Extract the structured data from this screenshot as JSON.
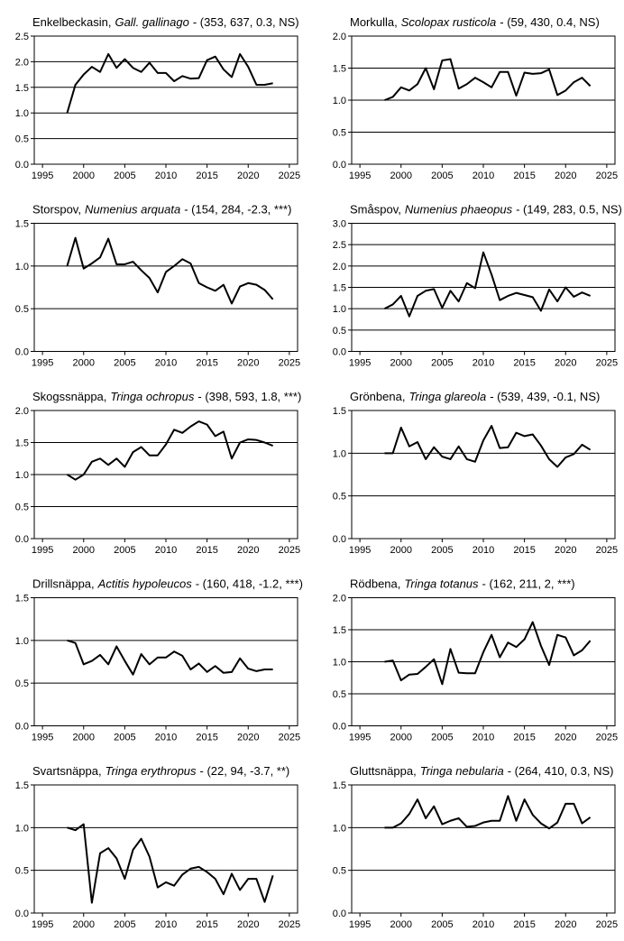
{
  "chart_data": [
    {
      "type": "line",
      "title": "Enkelbeckasin,",
      "species": "Gall. gallinago",
      "stats": "- (353, 637, 0.3, NS)",
      "x": [
        1998,
        1999,
        2000,
        2001,
        2002,
        2003,
        2004,
        2005,
        2006,
        2007,
        2008,
        2009,
        2010,
        2011,
        2012,
        2013,
        2014,
        2015,
        2016,
        2017,
        2018,
        2019,
        2020,
        2021,
        2022,
        2023
      ],
      "values": [
        1.0,
        1.55,
        1.75,
        1.9,
        1.8,
        2.15,
        1.88,
        2.05,
        1.88,
        1.8,
        1.98,
        1.78,
        1.78,
        1.62,
        1.72,
        1.67,
        1.68,
        2.03,
        2.1,
        1.85,
        1.7,
        2.15,
        1.9,
        1.55,
        1.55,
        1.58
      ],
      "color": "#000000",
      "xlim": [
        1994,
        2026
      ],
      "xticks": [
        1995,
        2000,
        2005,
        2010,
        2015,
        2020,
        2025
      ],
      "ylim": [
        0,
        2.5
      ],
      "yticks": [
        {
          "value": 0,
          "label": "0.0"
        },
        0.5,
        {
          "value": 1,
          "label": "1.0"
        },
        1.5,
        {
          "value": 2,
          "label": "2.0"
        },
        2.5
      ],
      "grid": true
    },
    {
      "type": "line",
      "title": "Morkulla,",
      "species": "Scolopax rusticola",
      "stats": "- (59, 430, 0.4, NS)",
      "x": [
        1998,
        1999,
        2000,
        2001,
        2002,
        2003,
        2004,
        2005,
        2006,
        2007,
        2008,
        2009,
        2010,
        2011,
        2012,
        2013,
        2014,
        2015,
        2016,
        2017,
        2018,
        2019,
        2020,
        2021,
        2022,
        2023
      ],
      "values": [
        1.0,
        1.05,
        1.2,
        1.15,
        1.25,
        1.5,
        1.17,
        1.62,
        1.64,
        1.18,
        1.25,
        1.35,
        1.28,
        1.2,
        1.44,
        1.44,
        1.07,
        1.43,
        1.41,
        1.42,
        1.48,
        1.08,
        1.15,
        1.28,
        1.35,
        1.22
      ],
      "color": "#000000",
      "xlim": [
        1994,
        2026
      ],
      "xticks": [
        1995,
        2000,
        2005,
        2010,
        2015,
        2020,
        2025
      ],
      "ylim": [
        0,
        2
      ],
      "yticks": [
        {
          "value": 0,
          "label": "0.0"
        },
        0.5,
        {
          "value": 1,
          "label": "1.0"
        },
        1.5,
        {
          "value": 2,
          "label": "2.0"
        }
      ],
      "grid": true
    },
    {
      "type": "line",
      "title": "Storspov,",
      "species": "Numenius arquata",
      "stats": "- (154, 284, -2.3, ***)",
      "x": [
        1998,
        1999,
        2000,
        2001,
        2002,
        2003,
        2004,
        2005,
        2006,
        2007,
        2008,
        2009,
        2010,
        2011,
        2012,
        2013,
        2014,
        2015,
        2016,
        2017,
        2018,
        2019,
        2020,
        2021,
        2022,
        2023
      ],
      "values": [
        1.0,
        1.33,
        0.97,
        1.03,
        1.1,
        1.32,
        1.02,
        1.02,
        1.05,
        0.95,
        0.86,
        0.69,
        0.93,
        1.0,
        1.08,
        1.03,
        0.8,
        0.75,
        0.71,
        0.78,
        0.56,
        0.76,
        0.8,
        0.78,
        0.72,
        0.61
      ],
      "color": "#000000",
      "xlim": [
        1994,
        2026
      ],
      "xticks": [
        1995,
        2000,
        2005,
        2010,
        2015,
        2020,
        2025
      ],
      "ylim": [
        0,
        1.5
      ],
      "yticks": [
        {
          "value": 0,
          "label": "0.0"
        },
        0.5,
        {
          "value": 1,
          "label": "1.0"
        },
        1.5
      ],
      "grid": true
    },
    {
      "type": "line",
      "title": "Småspov,",
      "species": "Numenius phaeopus",
      "stats": "- (149, 283, 0.5, NS)",
      "x": [
        1998,
        1999,
        2000,
        2001,
        2002,
        2003,
        2004,
        2005,
        2006,
        2007,
        2008,
        2009,
        2010,
        2011,
        2012,
        2013,
        2014,
        2015,
        2016,
        2017,
        2018,
        2019,
        2020,
        2021,
        2022,
        2023
      ],
      "values": [
        1.0,
        1.1,
        1.3,
        0.82,
        1.3,
        1.42,
        1.46,
        1.02,
        1.42,
        1.17,
        1.6,
        1.48,
        2.32,
        1.8,
        1.2,
        1.3,
        1.37,
        1.32,
        1.27,
        0.95,
        1.45,
        1.17,
        1.5,
        1.28,
        1.38,
        1.3
      ],
      "color": "#000000",
      "xlim": [
        1994,
        2026
      ],
      "xticks": [
        1995,
        2000,
        2005,
        2010,
        2015,
        2020,
        2025
      ],
      "ylim": [
        0,
        3
      ],
      "yticks": [
        {
          "value": 0,
          "label": "0.0"
        },
        0.5,
        {
          "value": 1,
          "label": "1.0"
        },
        1.5,
        {
          "value": 2,
          "label": "2.0"
        },
        2.5,
        {
          "value": 3,
          "label": "3.0"
        }
      ],
      "grid": true
    },
    {
      "type": "line",
      "title": "Skogssnäppa,",
      "species": "Tringa ochropus",
      "stats": "- (398, 593, 1.8, ***)",
      "x": [
        1998,
        1999,
        2000,
        2001,
        2002,
        2003,
        2004,
        2005,
        2006,
        2007,
        2008,
        2009,
        2010,
        2011,
        2012,
        2013,
        2014,
        2015,
        2016,
        2017,
        2018,
        2019,
        2020,
        2021,
        2022,
        2023
      ],
      "values": [
        1.0,
        0.92,
        1.0,
        1.2,
        1.25,
        1.15,
        1.25,
        1.12,
        1.35,
        1.43,
        1.3,
        1.3,
        1.47,
        1.7,
        1.65,
        1.75,
        1.83,
        1.78,
        1.6,
        1.67,
        1.25,
        1.5,
        1.55,
        1.54,
        1.5,
        1.45
      ],
      "color": "#000000",
      "xlim": [
        1994,
        2026
      ],
      "xticks": [
        1995,
        2000,
        2005,
        2010,
        2015,
        2020,
        2025
      ],
      "ylim": [
        0,
        2
      ],
      "yticks": [
        {
          "value": 0,
          "label": "0.0"
        },
        0.5,
        {
          "value": 1,
          "label": "1.0"
        },
        1.5,
        {
          "value": 2,
          "label": "2.0"
        }
      ],
      "grid": true
    },
    {
      "type": "line",
      "title": "Grönbena,",
      "species": "Tringa glareola",
      "stats": "- (539, 439, -0.1, NS)",
      "x": [
        1998,
        1999,
        2000,
        2001,
        2002,
        2003,
        2004,
        2005,
        2006,
        2007,
        2008,
        2009,
        2010,
        2011,
        2012,
        2013,
        2014,
        2015,
        2016,
        2017,
        2018,
        2019,
        2020,
        2021,
        2022,
        2023
      ],
      "values": [
        1.0,
        1.0,
        1.3,
        1.08,
        1.13,
        0.93,
        1.07,
        0.96,
        0.93,
        1.08,
        0.93,
        0.9,
        1.15,
        1.32,
        1.06,
        1.07,
        1.24,
        1.2,
        1.22,
        1.09,
        0.93,
        0.84,
        0.95,
        0.99,
        1.1,
        1.04
      ],
      "color": "#000000",
      "xlim": [
        1994,
        2026
      ],
      "xticks": [
        1995,
        2000,
        2005,
        2010,
        2015,
        2020,
        2025
      ],
      "ylim": [
        0,
        1.5
      ],
      "yticks": [
        {
          "value": 0,
          "label": "0.0"
        },
        0.5,
        {
          "value": 1,
          "label": "1.0"
        },
        1.5
      ],
      "grid": true
    },
    {
      "type": "line",
      "title": "Drillsnäppa,",
      "species": "Actitis hypoleucos",
      "stats": "- (160, 418, -1.2, ***)",
      "x": [
        1998,
        1999,
        2000,
        2001,
        2002,
        2003,
        2004,
        2005,
        2006,
        2007,
        2008,
        2009,
        2010,
        2011,
        2012,
        2013,
        2014,
        2015,
        2016,
        2017,
        2018,
        2019,
        2020,
        2021,
        2022,
        2023
      ],
      "values": [
        1.0,
        0.97,
        0.72,
        0.76,
        0.83,
        0.72,
        0.93,
        0.76,
        0.6,
        0.84,
        0.72,
        0.8,
        0.8,
        0.87,
        0.82,
        0.66,
        0.73,
        0.63,
        0.7,
        0.62,
        0.63,
        0.79,
        0.67,
        0.64,
        0.66,
        0.66
      ],
      "color": "#000000",
      "xlim": [
        1994,
        2026
      ],
      "xticks": [
        1995,
        2000,
        2005,
        2010,
        2015,
        2020,
        2025
      ],
      "ylim": [
        0,
        1.5
      ],
      "yticks": [
        {
          "value": 0,
          "label": "0.0"
        },
        0.5,
        {
          "value": 1,
          "label": "1.0"
        },
        1.5
      ],
      "grid": true
    },
    {
      "type": "line",
      "title": "Rödbena,",
      "species": "Tringa totanus",
      "stats": "- (162, 211, 2, ***)",
      "x": [
        1998,
        1999,
        2000,
        2001,
        2002,
        2003,
        2004,
        2005,
        2006,
        2007,
        2008,
        2009,
        2010,
        2011,
        2012,
        2013,
        2014,
        2015,
        2016,
        2017,
        2018,
        2019,
        2020,
        2021,
        2022,
        2023
      ],
      "values": [
        1.0,
        1.02,
        0.71,
        0.8,
        0.81,
        0.92,
        1.04,
        0.65,
        1.2,
        0.83,
        0.82,
        0.82,
        1.15,
        1.42,
        1.07,
        1.3,
        1.23,
        1.35,
        1.62,
        1.25,
        0.95,
        1.42,
        1.38,
        1.1,
        1.18,
        1.33
      ],
      "color": "#000000",
      "xlim": [
        1994,
        2026
      ],
      "xticks": [
        1995,
        2000,
        2005,
        2010,
        2015,
        2020,
        2025
      ],
      "ylim": [
        0,
        2
      ],
      "yticks": [
        {
          "value": 0,
          "label": "0.0"
        },
        0.5,
        {
          "value": 1,
          "label": "1.0"
        },
        1.5,
        {
          "value": 2,
          "label": "2.0"
        }
      ],
      "grid": true
    },
    {
      "type": "line",
      "title": "Svartsnäppa,",
      "species": "Tringa erythropus",
      "stats": "- (22, 94, -3.7, **)",
      "x": [
        1998,
        1999,
        2000,
        2001,
        2002,
        2003,
        2004,
        2005,
        2006,
        2007,
        2008,
        2009,
        2010,
        2011,
        2012,
        2013,
        2014,
        2015,
        2016,
        2017,
        2018,
        2019,
        2020,
        2021,
        2022,
        2023
      ],
      "values": [
        1.0,
        0.97,
        1.04,
        0.12,
        0.7,
        0.76,
        0.64,
        0.4,
        0.74,
        0.87,
        0.66,
        0.3,
        0.36,
        0.32,
        0.45,
        0.52,
        0.54,
        0.48,
        0.4,
        0.22,
        0.46,
        0.27,
        0.4,
        0.4,
        0.13,
        0.44
      ],
      "color": "#000000",
      "xlim": [
        1994,
        2026
      ],
      "xticks": [
        1995,
        2000,
        2005,
        2010,
        2015,
        2020,
        2025
      ],
      "ylim": [
        0,
        1.5
      ],
      "yticks": [
        {
          "value": 0,
          "label": "0.0"
        },
        0.5,
        {
          "value": 1,
          "label": "1.0"
        },
        1.5
      ],
      "grid": true
    },
    {
      "type": "line",
      "title": "Gluttsnäppa,",
      "species": "Tringa nebularia",
      "stats": "- (264, 410, 0.3, NS)",
      "x": [
        1998,
        1999,
        2000,
        2001,
        2002,
        2003,
        2004,
        2005,
        2006,
        2007,
        2008,
        2009,
        2010,
        2011,
        2012,
        2013,
        2014,
        2015,
        2016,
        2017,
        2018,
        2019,
        2020,
        2021,
        2022,
        2023
      ],
      "values": [
        1.0,
        1.0,
        1.05,
        1.16,
        1.33,
        1.11,
        1.25,
        1.04,
        1.08,
        1.11,
        1.01,
        1.02,
        1.06,
        1.08,
        1.08,
        1.37,
        1.08,
        1.33,
        1.15,
        1.05,
        0.99,
        1.06,
        1.28,
        1.28,
        1.05,
        1.12
      ],
      "color": "#000000",
      "xlim": [
        1994,
        2026
      ],
      "xticks": [
        1995,
        2000,
        2005,
        2010,
        2015,
        2020,
        2025
      ],
      "ylim": [
        0,
        1.5
      ],
      "yticks": [
        {
          "value": 0,
          "label": "0.0"
        },
        0.5,
        {
          "value": 1,
          "label": "1.0"
        },
        1.5
      ],
      "grid": true
    }
  ]
}
